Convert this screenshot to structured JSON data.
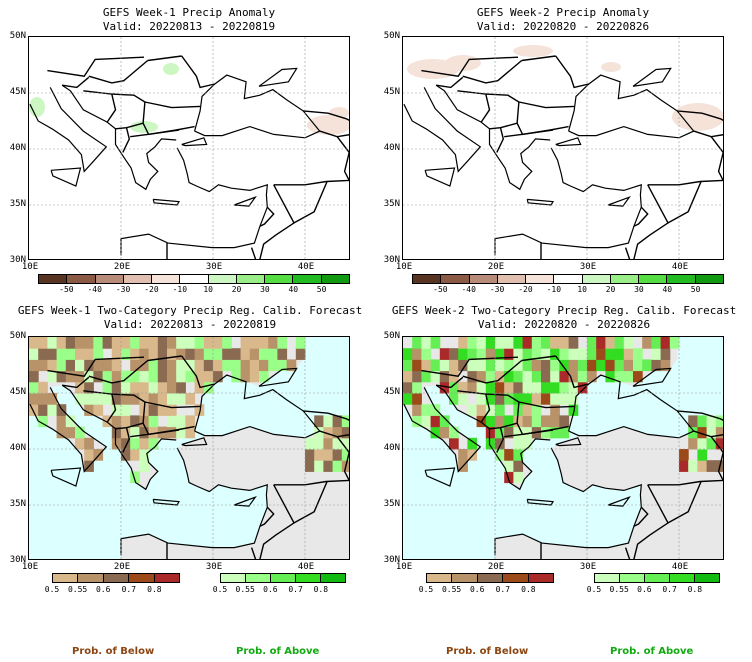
{
  "panels": [
    {
      "title": "GEFS Week-1 Precip Anomaly",
      "valid": "Valid: 20220813 - 20220819"
    },
    {
      "title": "GEFS Week-2 Precip Anomaly",
      "valid": "Valid: 20220820 - 20220826"
    },
    {
      "title": "GEFS Week-1 Two-Category Precip Reg. Calib. Forecast",
      "valid": "Valid: 20220813 - 20220819"
    },
    {
      "title": "GEFS Week-2 Two-Category Precip Reg. Calib. Forecast",
      "valid": "Valid: 20220820 - 20220826"
    }
  ],
  "lat_labels": [
    "50N",
    "45N",
    "40N",
    "35N",
    "30N"
  ],
  "lon_labels": [
    "10E",
    "20E",
    "30E",
    "40E"
  ],
  "anomaly_colorbar": {
    "labels": [
      "-50",
      "-40",
      "-30",
      "-20",
      "-10",
      "10",
      "20",
      "30",
      "40",
      "50"
    ],
    "colors": [
      "#5a3422",
      "#8a5a45",
      "#b88a78",
      "#e0bfb0",
      "#f5e3d9",
      "#ffffff",
      "#ccf7c2",
      "#99ee88",
      "#55dd44",
      "#22bb22",
      "#119911"
    ]
  },
  "below_colorbar": {
    "labels": [
      "0.5",
      "0.55",
      "0.6",
      "0.7",
      "0.8"
    ],
    "colors": [
      "#d9b98c",
      "#b89268",
      "#8a6a50",
      "#9c4a1a",
      "#aa2a2a"
    ]
  },
  "above_colorbar": {
    "labels": [
      "0.5",
      "0.55",
      "0.6",
      "0.7",
      "0.8"
    ],
    "colors": [
      "#ccffbb",
      "#99ff88",
      "#66ee55",
      "#33dd22",
      "#11bb11"
    ]
  },
  "prob_below_label": "Prob. of Below",
  "prob_above_label": "Prob. of Above",
  "colors": {
    "below_label": "#8b4513",
    "above_label": "#11aa11",
    "sea_prob": "#dcffff",
    "land_gray": "#e8e8e8"
  }
}
